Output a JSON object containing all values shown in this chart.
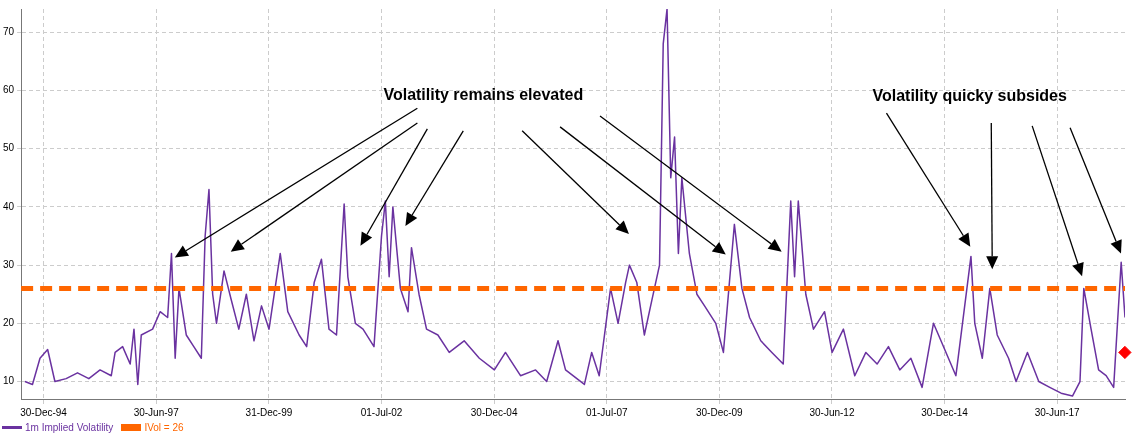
{
  "chart_data": {
    "type": "line",
    "annotations": [
      "Volatility remains elevated",
      "Volatility quicky subsides"
    ],
    "series": [
      {
        "name": "1m Implied Volatility",
        "color": "#6a32a0",
        "x": [
          "1994-08",
          "1994-10",
          "1994-12",
          "1995-02",
          "1995-04",
          "1995-07",
          "1995-10",
          "1996-01",
          "1996-04",
          "1996-07",
          "1996-08",
          "1996-10",
          "1996-12",
          "1997-01",
          "1997-02",
          "1997-03",
          "1997-06",
          "1997-08",
          "1997-10",
          "1997-11",
          "1997-12",
          "1998-01",
          "1998-03",
          "1998-05",
          "1998-07",
          "1998-08",
          "1998-09",
          "1998-10",
          "1998-11",
          "1999-01",
          "1999-03",
          "1999-05",
          "1999-07",
          "1999-09",
          "1999-11",
          "2000-01",
          "2000-04",
          "2000-06",
          "2000-09",
          "2000-11",
          "2001-01",
          "2001-03",
          "2001-05",
          "2001-07",
          "2001-09",
          "2001-10",
          "2001-12",
          "2002-02",
          "2002-05",
          "2002-07",
          "2002-08",
          "2002-09",
          "2002-10",
          "2002-12",
          "2003-02",
          "2003-03",
          "2003-05",
          "2003-07",
          "2003-10",
          "2004-01",
          "2004-05",
          "2004-09",
          "2005-01",
          "2005-04",
          "2005-08",
          "2005-12",
          "2006-03",
          "2006-06",
          "2006-08",
          "2006-11",
          "2007-01",
          "2007-03",
          "2007-05",
          "2007-08",
          "2007-10",
          "2007-12",
          "2008-01",
          "2008-03",
          "2008-05",
          "2008-07",
          "2008-09",
          "2008-10",
          "2008-11",
          "2008-12",
          "2009-01",
          "2009-02",
          "2009-03",
          "2009-05",
          "2009-07",
          "2009-09",
          "2009-12",
          "2010-02",
          "2010-05",
          "2010-07",
          "2010-09",
          "2010-12",
          "2011-03",
          "2011-06",
          "2011-08",
          "2011-09",
          "2011-10",
          "2011-12",
          "2012-02",
          "2012-05",
          "2012-07",
          "2012-10",
          "2013-01",
          "2013-04",
          "2013-07",
          "2013-10",
          "2014-01",
          "2014-04",
          "2014-07",
          "2014-10",
          "2014-12",
          "2015-04",
          "2015-08",
          "2015-09",
          "2015-11",
          "2016-01",
          "2016-03",
          "2016-06",
          "2016-08",
          "2016-11",
          "2017-02",
          "2017-05",
          "2017-08",
          "2017-11",
          "2018-01",
          "2018-02",
          "2018-04",
          "2018-06",
          "2018-08",
          "2018-10",
          "2018-11",
          "2018-12",
          "2019-01"
        ],
        "values": [
          10,
          9.5,
          14,
          15.5,
          10,
          10.5,
          11.5,
          10.5,
          12,
          11,
          15,
          16,
          13,
          19,
          9.5,
          18,
          19,
          22,
          21,
          32,
          14,
          26,
          18,
          16,
          14,
          35,
          43,
          25,
          20,
          29,
          24,
          19,
          25,
          17,
          23,
          19,
          32,
          22,
          18,
          16,
          27,
          31,
          19,
          18,
          40.5,
          28,
          20,
          19,
          16,
          35,
          41,
          28,
          40,
          26,
          22,
          33,
          25,
          19,
          18,
          15,
          17,
          14,
          12,
          15,
          11,
          12,
          10,
          17,
          12,
          10.5,
          9.5,
          15,
          11,
          26,
          20,
          27,
          30,
          27,
          18,
          24,
          30,
          68,
          74,
          45,
          52,
          32,
          45,
          32,
          25,
          23,
          20,
          15,
          37,
          26,
          21,
          17,
          15,
          13,
          41,
          28,
          41,
          25,
          19,
          22,
          15,
          19,
          11,
          15,
          13,
          16,
          12,
          14,
          9,
          20,
          17,
          11,
          31.5,
          20,
          14,
          26,
          18,
          14,
          10,
          15,
          10,
          9,
          8,
          7.5,
          10,
          26,
          19,
          12,
          11,
          9,
          20,
          30.5,
          21
        ]
      },
      {
        "type": "scatter",
        "marker": "diamond",
        "color": "#ff0000",
        "x": [
          "2019-01"
        ],
        "values": [
          15
        ]
      }
    ],
    "ref_lines": [
      {
        "axis": "y",
        "value": 26,
        "label": "IVol = 26",
        "color": "#ff6600",
        "line_style": "dashed"
      }
    ],
    "xlim": [
      "1994-07",
      "2019-01"
    ],
    "xticks": [
      {
        "value": "1994-12-30",
        "label": "30-Dec-94"
      },
      {
        "value": "1997-06-30",
        "label": "30-Jun-97"
      },
      {
        "value": "1999-12-31",
        "label": "31-Dec-99"
      },
      {
        "value": "2002-07-01",
        "label": "01-Jul-02"
      },
      {
        "value": "2004-12-30",
        "label": "30-Dec-04"
      },
      {
        "value": "2007-07-01",
        "label": "01-Jul-07"
      },
      {
        "value": "2009-12-30",
        "label": "30-Dec-09"
      },
      {
        "value": "2012-06-30",
        "label": "30-Jun-12"
      },
      {
        "value": "2014-12-30",
        "label": "30-Dec-14"
      },
      {
        "value": "2017-06-30",
        "label": "30-Jun-17"
      }
    ],
    "ylim": [
      7,
      74
    ],
    "yticks": [
      10,
      20,
      30,
      40,
      50,
      60,
      70
    ],
    "grid": true,
    "legend": "bottom left",
    "marker": "none",
    "line_style": "solid"
  }
}
